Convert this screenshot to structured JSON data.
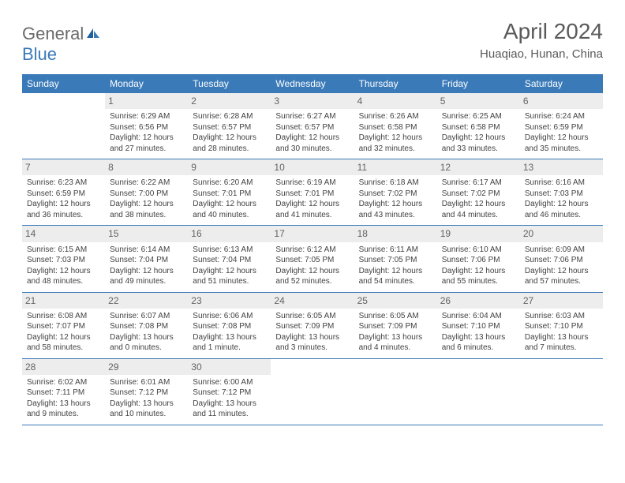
{
  "logo": {
    "text1": "General",
    "text2": "Blue"
  },
  "title": "April 2024",
  "location": "Huaqiao, Hunan, China",
  "colors": {
    "header_bg": "#3a7ab8",
    "header_text": "#ffffff",
    "daynum_bg": "#ededed",
    "daynum_text": "#636363",
    "body_text": "#424242",
    "row_border": "#3a7ab8",
    "logo_gray": "#6a6a6a",
    "logo_blue": "#3a7ab8"
  },
  "fonts": {
    "title_size": 28,
    "location_size": 15,
    "dow_size": 12,
    "daynum_size": 12,
    "info_size": 10
  },
  "days_of_week": [
    "Sunday",
    "Monday",
    "Tuesday",
    "Wednesday",
    "Thursday",
    "Friday",
    "Saturday"
  ],
  "weeks": [
    [
      null,
      {
        "n": "1",
        "sr": "Sunrise: 6:29 AM",
        "ss": "Sunset: 6:56 PM",
        "dl": "Daylight: 12 hours and 27 minutes."
      },
      {
        "n": "2",
        "sr": "Sunrise: 6:28 AM",
        "ss": "Sunset: 6:57 PM",
        "dl": "Daylight: 12 hours and 28 minutes."
      },
      {
        "n": "3",
        "sr": "Sunrise: 6:27 AM",
        "ss": "Sunset: 6:57 PM",
        "dl": "Daylight: 12 hours and 30 minutes."
      },
      {
        "n": "4",
        "sr": "Sunrise: 6:26 AM",
        "ss": "Sunset: 6:58 PM",
        "dl": "Daylight: 12 hours and 32 minutes."
      },
      {
        "n": "5",
        "sr": "Sunrise: 6:25 AM",
        "ss": "Sunset: 6:58 PM",
        "dl": "Daylight: 12 hours and 33 minutes."
      },
      {
        "n": "6",
        "sr": "Sunrise: 6:24 AM",
        "ss": "Sunset: 6:59 PM",
        "dl": "Daylight: 12 hours and 35 minutes."
      }
    ],
    [
      {
        "n": "7",
        "sr": "Sunrise: 6:23 AM",
        "ss": "Sunset: 6:59 PM",
        "dl": "Daylight: 12 hours and 36 minutes."
      },
      {
        "n": "8",
        "sr": "Sunrise: 6:22 AM",
        "ss": "Sunset: 7:00 PM",
        "dl": "Daylight: 12 hours and 38 minutes."
      },
      {
        "n": "9",
        "sr": "Sunrise: 6:20 AM",
        "ss": "Sunset: 7:01 PM",
        "dl": "Daylight: 12 hours and 40 minutes."
      },
      {
        "n": "10",
        "sr": "Sunrise: 6:19 AM",
        "ss": "Sunset: 7:01 PM",
        "dl": "Daylight: 12 hours and 41 minutes."
      },
      {
        "n": "11",
        "sr": "Sunrise: 6:18 AM",
        "ss": "Sunset: 7:02 PM",
        "dl": "Daylight: 12 hours and 43 minutes."
      },
      {
        "n": "12",
        "sr": "Sunrise: 6:17 AM",
        "ss": "Sunset: 7:02 PM",
        "dl": "Daylight: 12 hours and 44 minutes."
      },
      {
        "n": "13",
        "sr": "Sunrise: 6:16 AM",
        "ss": "Sunset: 7:03 PM",
        "dl": "Daylight: 12 hours and 46 minutes."
      }
    ],
    [
      {
        "n": "14",
        "sr": "Sunrise: 6:15 AM",
        "ss": "Sunset: 7:03 PM",
        "dl": "Daylight: 12 hours and 48 minutes."
      },
      {
        "n": "15",
        "sr": "Sunrise: 6:14 AM",
        "ss": "Sunset: 7:04 PM",
        "dl": "Daylight: 12 hours and 49 minutes."
      },
      {
        "n": "16",
        "sr": "Sunrise: 6:13 AM",
        "ss": "Sunset: 7:04 PM",
        "dl": "Daylight: 12 hours and 51 minutes."
      },
      {
        "n": "17",
        "sr": "Sunrise: 6:12 AM",
        "ss": "Sunset: 7:05 PM",
        "dl": "Daylight: 12 hours and 52 minutes."
      },
      {
        "n": "18",
        "sr": "Sunrise: 6:11 AM",
        "ss": "Sunset: 7:05 PM",
        "dl": "Daylight: 12 hours and 54 minutes."
      },
      {
        "n": "19",
        "sr": "Sunrise: 6:10 AM",
        "ss": "Sunset: 7:06 PM",
        "dl": "Daylight: 12 hours and 55 minutes."
      },
      {
        "n": "20",
        "sr": "Sunrise: 6:09 AM",
        "ss": "Sunset: 7:06 PM",
        "dl": "Daylight: 12 hours and 57 minutes."
      }
    ],
    [
      {
        "n": "21",
        "sr": "Sunrise: 6:08 AM",
        "ss": "Sunset: 7:07 PM",
        "dl": "Daylight: 12 hours and 58 minutes."
      },
      {
        "n": "22",
        "sr": "Sunrise: 6:07 AM",
        "ss": "Sunset: 7:08 PM",
        "dl": "Daylight: 13 hours and 0 minutes."
      },
      {
        "n": "23",
        "sr": "Sunrise: 6:06 AM",
        "ss": "Sunset: 7:08 PM",
        "dl": "Daylight: 13 hours and 1 minute."
      },
      {
        "n": "24",
        "sr": "Sunrise: 6:05 AM",
        "ss": "Sunset: 7:09 PM",
        "dl": "Daylight: 13 hours and 3 minutes."
      },
      {
        "n": "25",
        "sr": "Sunrise: 6:05 AM",
        "ss": "Sunset: 7:09 PM",
        "dl": "Daylight: 13 hours and 4 minutes."
      },
      {
        "n": "26",
        "sr": "Sunrise: 6:04 AM",
        "ss": "Sunset: 7:10 PM",
        "dl": "Daylight: 13 hours and 6 minutes."
      },
      {
        "n": "27",
        "sr": "Sunrise: 6:03 AM",
        "ss": "Sunset: 7:10 PM",
        "dl": "Daylight: 13 hours and 7 minutes."
      }
    ],
    [
      {
        "n": "28",
        "sr": "Sunrise: 6:02 AM",
        "ss": "Sunset: 7:11 PM",
        "dl": "Daylight: 13 hours and 9 minutes."
      },
      {
        "n": "29",
        "sr": "Sunrise: 6:01 AM",
        "ss": "Sunset: 7:12 PM",
        "dl": "Daylight: 13 hours and 10 minutes."
      },
      {
        "n": "30",
        "sr": "Sunrise: 6:00 AM",
        "ss": "Sunset: 7:12 PM",
        "dl": "Daylight: 13 hours and 11 minutes."
      },
      null,
      null,
      null,
      null
    ]
  ]
}
